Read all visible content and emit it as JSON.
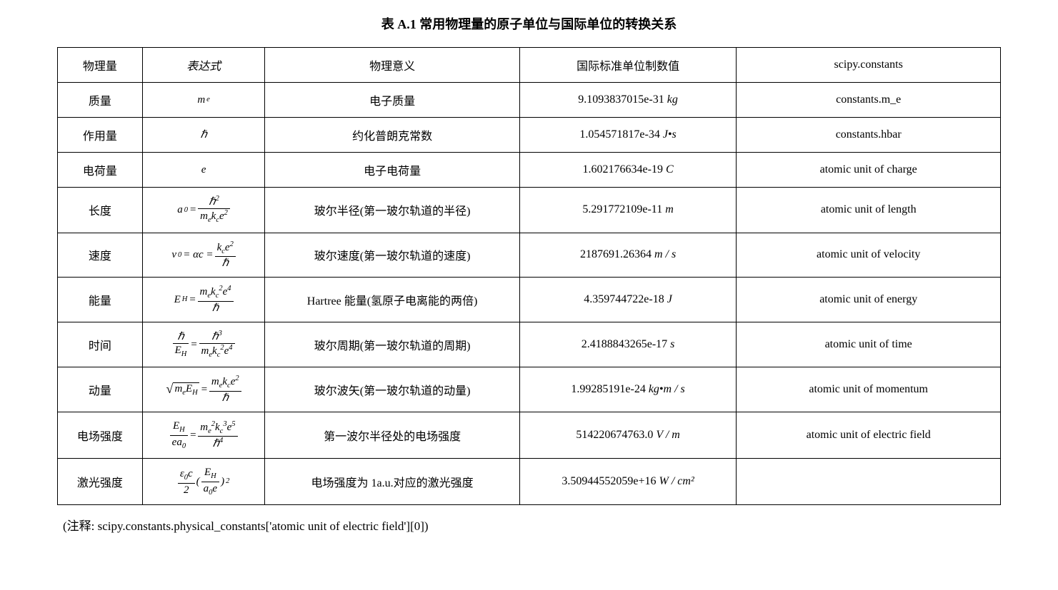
{
  "title": "表 A.1 常用物理量的原子单位与国际单位的转换关系",
  "headers": {
    "quantity": "物理量",
    "expression": "表达式",
    "meaning": "物理意义",
    "si_value": "国际标准单位制数值",
    "scipy": "scipy.constants"
  },
  "rows": [
    {
      "quantity": "质量",
      "meaning": "电子质量",
      "value": "9.1093837015e-31",
      "unit": "kg",
      "scipy": "constants.m_e"
    },
    {
      "quantity": "作用量",
      "meaning": "约化普朗克常数",
      "value": "1.054571817e-34",
      "unit": "J•s",
      "scipy": "constants.hbar"
    },
    {
      "quantity": "电荷量",
      "meaning": "电子电荷量",
      "value": "1.602176634e-19",
      "unit": "C",
      "scipy": "atomic unit of charge"
    },
    {
      "quantity": "长度",
      "meaning": "玻尔半径(第一玻尔轨道的半径)",
      "value": "5.291772109e-11",
      "unit": "m",
      "scipy": "atomic unit of length"
    },
    {
      "quantity": "速度",
      "meaning": "玻尔速度(第一玻尔轨道的速度)",
      "value": "2187691.26364",
      "unit": "m / s",
      "scipy": "atomic unit of velocity"
    },
    {
      "quantity": "能量",
      "meaning": "Hartree 能量(氢原子电离能的两倍)",
      "value": "4.359744722e-18",
      "unit": "J",
      "scipy": "atomic unit of energy"
    },
    {
      "quantity": "时间",
      "meaning": "玻尔周期(第一玻尔轨道的周期)",
      "value": "2.4188843265e-17",
      "unit": "s",
      "scipy": "atomic unit of time"
    },
    {
      "quantity": "动量",
      "meaning": "玻尔波矢(第一玻尔轨道的动量)",
      "value": "1.99285191e-24",
      "unit": "kg•m / s",
      "scipy": "atomic unit of momentum"
    },
    {
      "quantity": "电场强度",
      "meaning": "第一波尔半径处的电场强度",
      "value": "514220674763.0",
      "unit": "V / m",
      "scipy": "atomic unit of electric field"
    },
    {
      "quantity": "激光强度",
      "meaning": "电场强度为 1a.u.对应的激光强度",
      "value": "3.50944552059e+16",
      "unit": "W / cm²",
      "scipy": ""
    }
  ],
  "note_label": "(注释: ",
  "note_code": "scipy.constants.physical_constants['atomic unit of electric field'][0])",
  "styling": {
    "background_color": "#ffffff",
    "border_color": "#000000",
    "text_color": "#000000",
    "title_fontsize": 18,
    "cell_fontsize": 16,
    "font_serif_cn": "SimSun",
    "font_serif_en": "Times New Roman",
    "column_widths_pct": [
      9,
      13,
      27,
      23,
      28
    ]
  }
}
